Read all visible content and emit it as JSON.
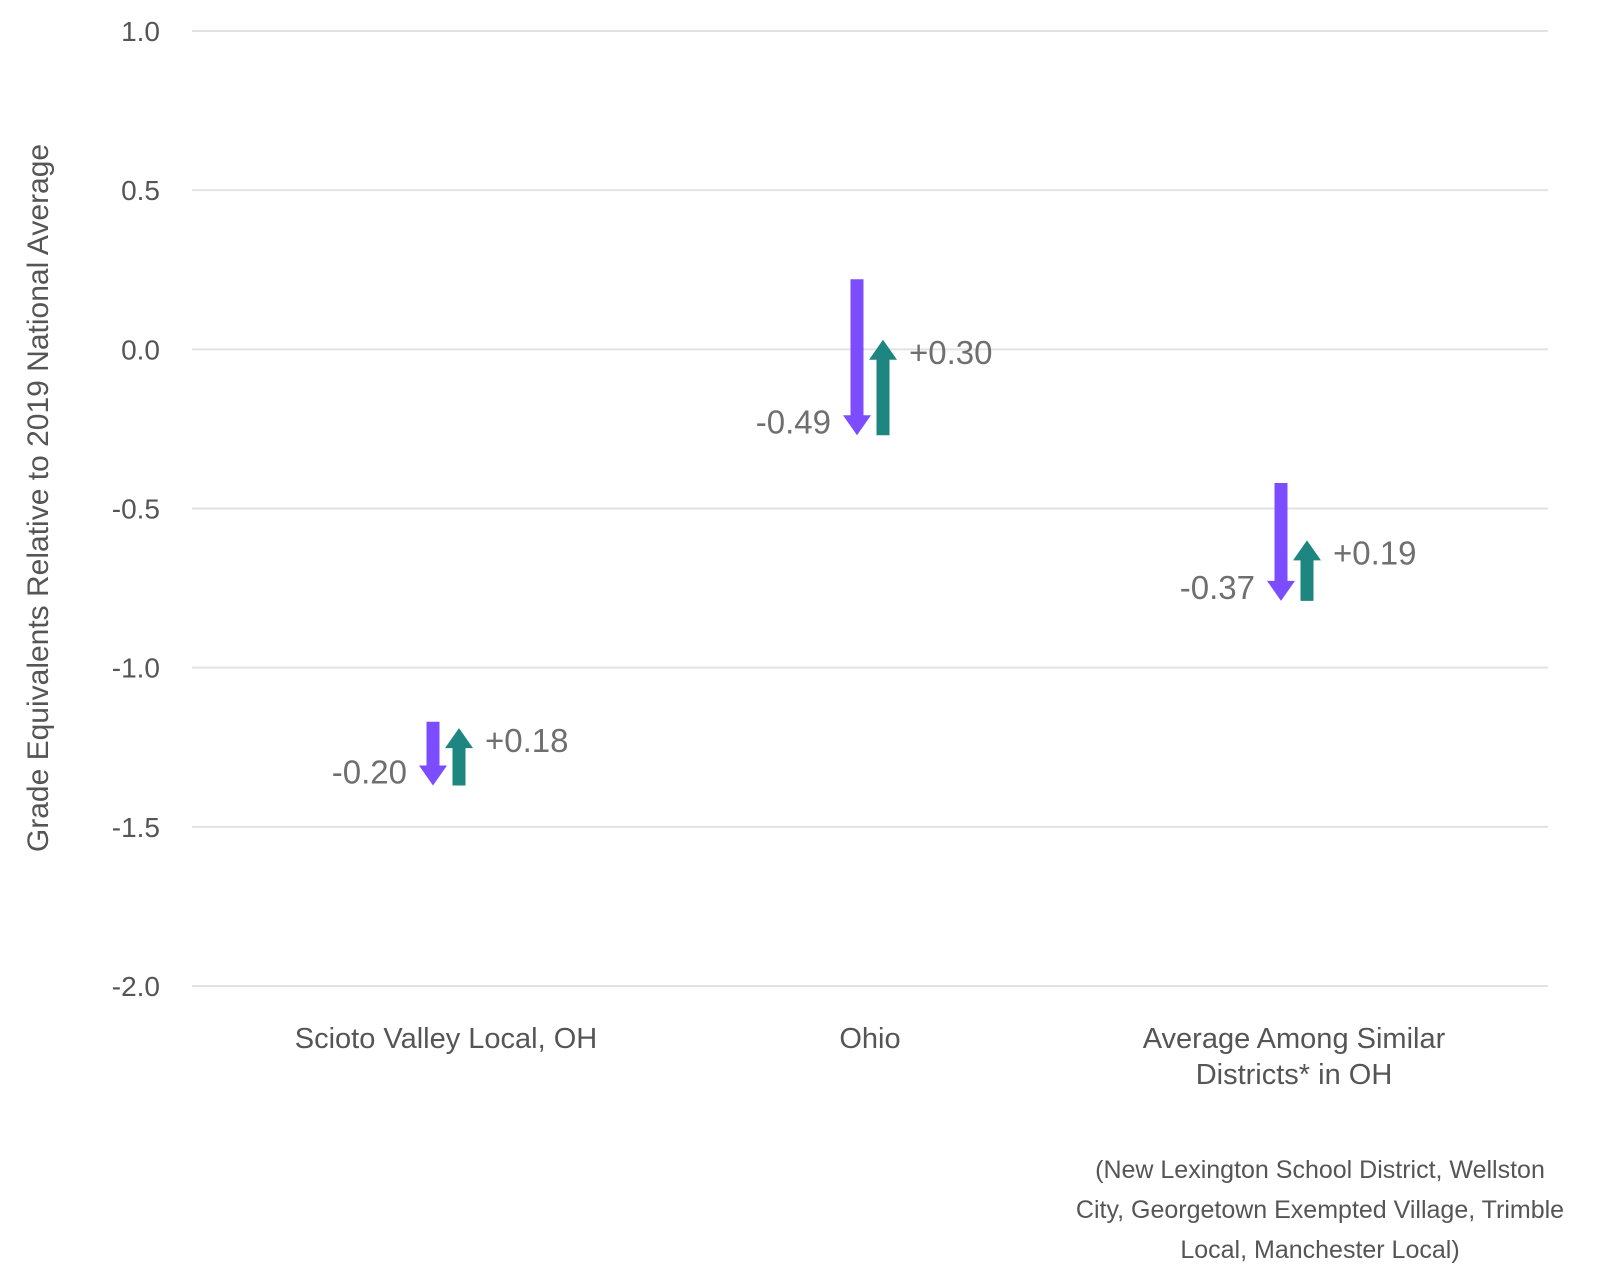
{
  "chart_data": {
    "type": "arrow-change",
    "ylabel": "Grade Equivalents Relative to 2019 National Average",
    "ylim": [
      -2.0,
      1.0
    ],
    "yticks": [
      1.0,
      0.5,
      0.0,
      -0.5,
      -1.0,
      -1.5,
      -2.0
    ],
    "ytick_labels": [
      "1.0",
      "0.5",
      "0.0",
      "-0.5",
      "-1.0",
      "-1.5",
      "-2.0"
    ],
    "grid": true,
    "categories": [
      "Scioto Valley Local, OH",
      "Ohio",
      "Average Among Similar Districts* in OH"
    ],
    "category_label_lines": [
      [
        "Scioto Valley Local, OH"
      ],
      [
        "Ohio"
      ],
      [
        "Average Among Similar",
        "Districts* in OH"
      ]
    ],
    "series": [
      {
        "values": [
          -0.2,
          -0.49,
          -0.37
        ],
        "labels": [
          "-0.20",
          "-0.49",
          "-0.37"
        ],
        "start": [
          -1.17,
          0.22,
          -0.42
        ],
        "end": [
          -1.37,
          -0.27,
          -0.79
        ],
        "color": "#7c4dff",
        "direction": "down"
      },
      {
        "values": [
          0.18,
          0.3,
          0.19
        ],
        "labels": [
          "+0.18",
          "+0.30",
          "+0.19"
        ],
        "start": [
          -1.37,
          -0.27,
          -0.79
        ],
        "end": [
          -1.19,
          0.03,
          -0.6
        ],
        "color": "#1e8580",
        "direction": "up"
      }
    ],
    "footnote_lines": [
      "(New Lexington School District, Wellston",
      "City, Georgetown Exempted Village, Trimble",
      "Local, Manchester Local)"
    ]
  },
  "colors": {
    "grid": "#e2e2e2",
    "text": "#555555",
    "value_label": "#6f6f6f"
  }
}
